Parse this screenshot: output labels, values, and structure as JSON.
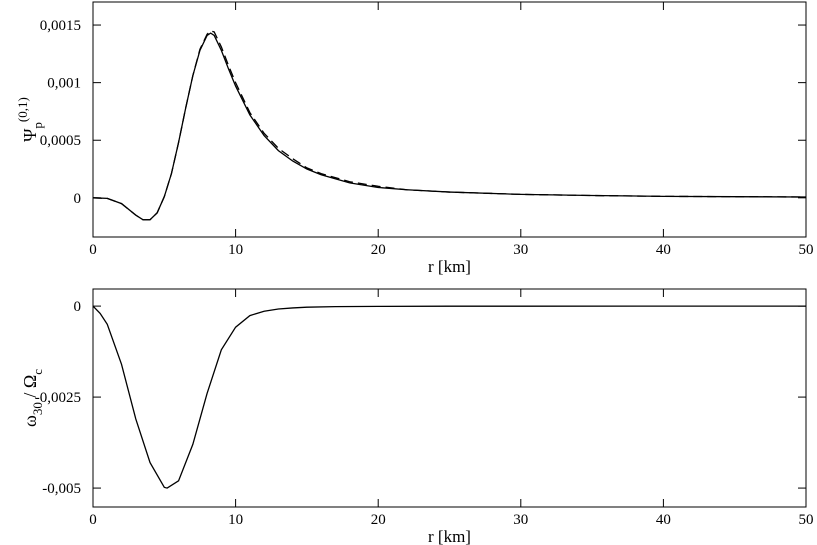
{
  "chart_data": [
    {
      "type": "line",
      "xlabel": "r [km]",
      "ylabel": [
        {
          "text": "Ψ",
          "pos": "base"
        },
        {
          "text": "p",
          "pos": "sub"
        },
        {
          "text": "(0,1)",
          "pos": "sup"
        }
      ],
      "x": [
        0,
        1,
        2,
        3,
        3.5,
        4,
        4.5,
        5,
        5.5,
        6,
        6.5,
        7,
        7.5,
        8,
        8.25,
        8.5,
        9,
        9.5,
        10,
        11,
        12,
        13,
        14,
        15,
        16,
        18,
        20,
        22,
        25,
        30,
        35,
        40,
        45,
        50
      ],
      "series": [
        {
          "color": "#000000",
          "dash": "solid",
          "values": [
            0,
            -5e-06,
            -5e-05,
            -0.00015,
            -0.00019,
            -0.00019,
            -0.00013,
            1e-05,
            0.00021,
            0.00048,
            0.00078,
            0.00106,
            0.00128,
            0.00141,
            0.00143,
            0.00141,
            0.00128,
            0.00112,
            0.00097,
            0.00072,
            0.00054,
            0.00041,
            0.00032,
            0.00025,
            0.0002,
            0.00013,
            9e-05,
            7e-05,
            5e-05,
            3e-05,
            2e-05,
            1.3e-05,
            1e-05,
            7e-06
          ]
        },
        {
          "color": "#000000",
          "dash": "dashed",
          "values": [
            0,
            -5e-06,
            -5e-05,
            -0.00015,
            -0.00019,
            -0.00019,
            -0.00013,
            1e-05,
            0.00021,
            0.00048,
            0.00078,
            0.00106,
            0.00129,
            0.00142,
            0.00145,
            0.00144,
            0.00131,
            0.00115,
            0.001,
            0.00074,
            0.00056,
            0.00043,
            0.00034,
            0.00026,
            0.00021,
            0.00014,
            0.0001,
            7e-05,
            5e-05,
            3e-05,
            2e-05,
            1.3e-05,
            1e-05,
            7e-06
          ]
        }
      ],
      "xlim": [
        0,
        50
      ],
      "xticks": [
        0,
        10,
        20,
        30,
        40,
        50
      ],
      "ylim": [
        -0.00034,
        0.0017
      ],
      "yticks": [
        0,
        {
          "value": 0.0005,
          "label": "0,0005"
        },
        {
          "value": 0.001,
          "label": "0,001"
        },
        {
          "value": 0.0015,
          "label": "0,0015"
        }
      ]
    },
    {
      "type": "line",
      "xlabel": "r [km]",
      "ylabel": [
        {
          "text": "ω",
          "pos": "base"
        },
        {
          "text": "30",
          "pos": "sub"
        },
        {
          "text": " / Ω",
          "pos": "base"
        },
        {
          "text": "c",
          "pos": "sub"
        }
      ],
      "x": [
        0,
        0.5,
        1,
        2,
        3,
        4,
        5,
        5.2,
        6,
        7,
        7.5,
        8,
        9,
        10,
        11,
        12,
        13,
        14,
        15,
        17,
        20,
        25,
        30,
        40,
        50
      ],
      "series": [
        {
          "color": "#000000",
          "dash": "solid",
          "values": [
            0,
            -0.0002,
            -0.0005,
            -0.0016,
            -0.0031,
            -0.0043,
            -0.00498,
            -0.005,
            -0.0048,
            -0.0038,
            -0.0031,
            -0.0024,
            -0.0012,
            -0.00058,
            -0.00026,
            -0.00014,
            -8e-05,
            -5e-05,
            -3e-05,
            -1.5e-05,
            -8e-06,
            -3e-06,
            -2e-06,
            -1e-06,
            0
          ]
        }
      ],
      "xlim": [
        0,
        50
      ],
      "xticks": [
        0,
        10,
        20,
        30,
        40,
        50
      ],
      "ylim": [
        -0.00552,
        0.00047
      ],
      "yticks": [
        {
          "value": -0.005,
          "label": "-0,005"
        },
        {
          "value": -0.0025,
          "label": "-0,0025"
        },
        0
      ]
    }
  ]
}
